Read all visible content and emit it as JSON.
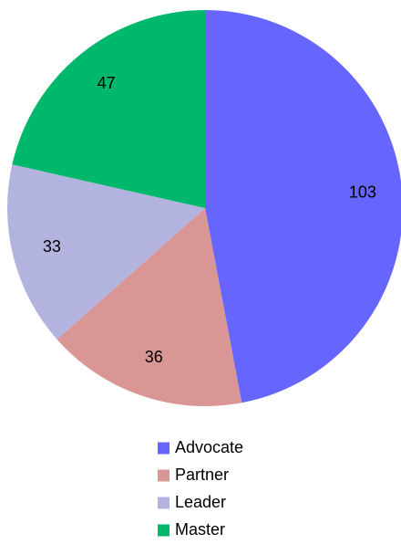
{
  "chart_data": {
    "type": "pie",
    "categories": [
      "Advocate",
      "Partner",
      "Leader",
      "Master"
    ],
    "values": [
      103,
      36,
      33,
      47
    ],
    "colors": [
      "#6666ff",
      "#d99694",
      "#b3b3df",
      "#00b86b"
    ],
    "legend": "bottom"
  }
}
